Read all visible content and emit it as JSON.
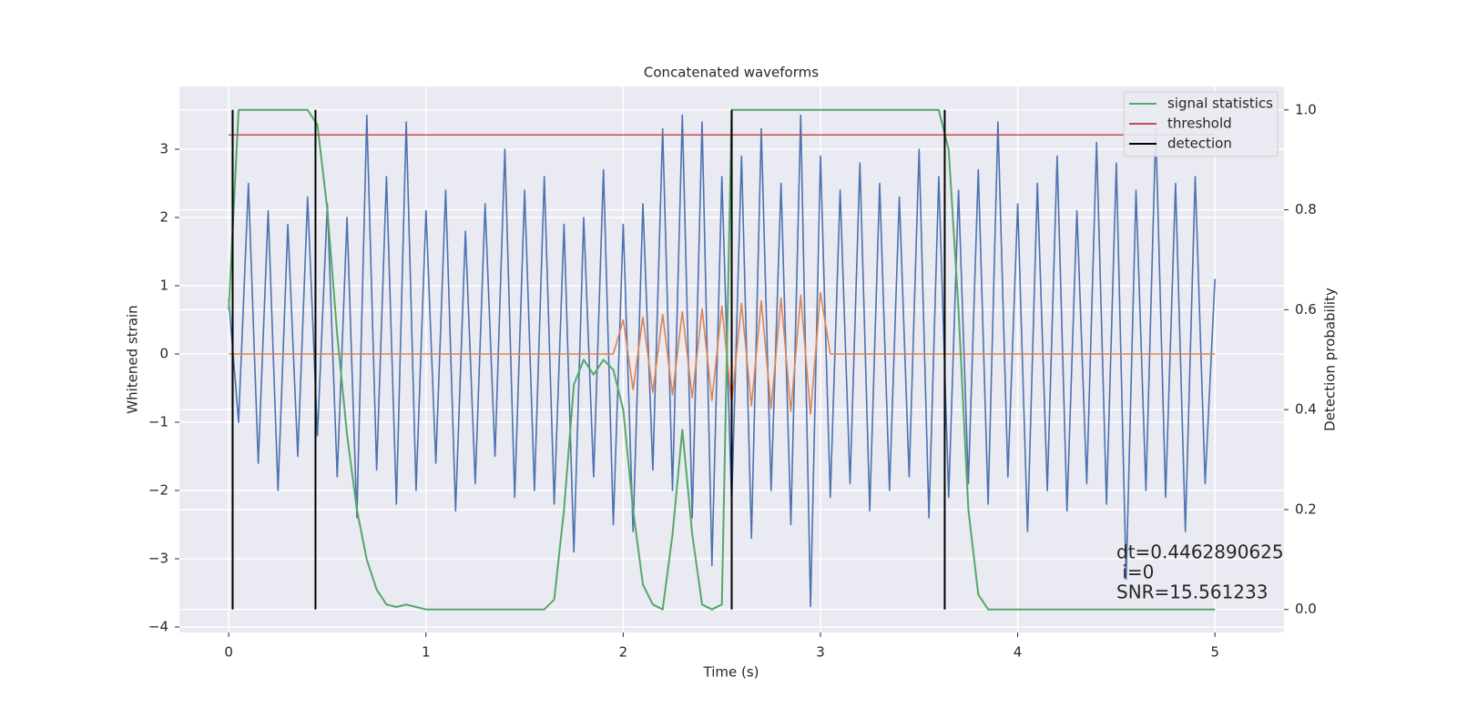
{
  "chart_data": {
    "type": "line",
    "title": "Concatenated waveforms",
    "xlabel": "Time (s)",
    "ylabel": "Whitened strain",
    "y2label": "Detection probability",
    "xlim": [
      -0.25,
      5.35
    ],
    "xticks": [
      0,
      1,
      2,
      3,
      4,
      5
    ],
    "ylim": [
      -4.08,
      3.92
    ],
    "yticks": [
      {
        "value": -4,
        "label": "−4"
      },
      {
        "value": -3,
        "label": "−3"
      },
      {
        "value": -2,
        "label": "−2"
      },
      {
        "value": -1,
        "label": "−1"
      },
      0,
      1,
      2,
      3
    ],
    "y2lim": [
      -0.046,
      1.047
    ],
    "y2ticks": [
      {
        "value": 0,
        "label": "0.0"
      },
      {
        "value": 0.2,
        "label": "0.2"
      },
      {
        "value": 0.4,
        "label": "0.4"
      },
      {
        "value": 0.6,
        "label": "0.6"
      },
      {
        "value": 0.8,
        "label": "0.8"
      },
      {
        "value": 1,
        "label": "1.0"
      }
    ],
    "grid": true,
    "legend": "upper right",
    "x": [
      0,
      0.05,
      0.1,
      0.15,
      0.2,
      0.25,
      0.3,
      0.35,
      0.4,
      0.45,
      0.5,
      0.55,
      0.6,
      0.65,
      0.7,
      0.75,
      0.8,
      0.85,
      0.9,
      0.95,
      1,
      1.05,
      1.1,
      1.15,
      1.2,
      1.25,
      1.3,
      1.35,
      1.4,
      1.45,
      1.5,
      1.55,
      1.6,
      1.65,
      1.7,
      1.75,
      1.8,
      1.85,
      1.9,
      1.95,
      2,
      2.05,
      2.1,
      2.15,
      2.2,
      2.25,
      2.3,
      2.35,
      2.4,
      2.45,
      2.5,
      2.55,
      2.6,
      2.65,
      2.7,
      2.75,
      2.8,
      2.85,
      2.9,
      2.95,
      3,
      3.05,
      3.1,
      3.15,
      3.2,
      3.25,
      3.3,
      3.35,
      3.4,
      3.45,
      3.5,
      3.55,
      3.6,
      3.65,
      3.7,
      3.75,
      3.8,
      3.85,
      3.9,
      3.95,
      4,
      4.05,
      4.1,
      4.15,
      4.2,
      4.25,
      4.3,
      4.35,
      4.4,
      4.45,
      4.5,
      4.55,
      4.6,
      4.65,
      4.7,
      4.75,
      4.8,
      4.85,
      4.9,
      4.95,
      5
    ],
    "series": [
      {
        "color": "#4c72b0",
        "values": [
          0.8,
          -1.0,
          2.5,
          -1.6,
          2.1,
          -2.0,
          1.9,
          -1.5,
          2.3,
          -1.2,
          2.2,
          -1.8,
          2.0,
          -2.4,
          3.5,
          -1.7,
          2.6,
          -2.2,
          3.4,
          -2.0,
          2.1,
          -1.6,
          2.4,
          -2.3,
          1.8,
          -1.9,
          2.2,
          -1.5,
          3.0,
          -2.1,
          2.4,
          -2.0,
          2.6,
          -2.2,
          1.9,
          -2.9,
          2.0,
          -1.8,
          2.7,
          -2.5,
          1.9,
          -2.6,
          2.2,
          -1.7,
          3.3,
          -2.0,
          3.5,
          -2.4,
          3.4,
          -3.1,
          2.6,
          -2.2,
          2.9,
          -2.7,
          3.3,
          -2.0,
          2.5,
          -2.5,
          3.5,
          -3.7,
          2.9,
          -2.1,
          2.4,
          -1.9,
          2.8,
          -2.3,
          2.5,
          -2.0,
          2.3,
          -1.8,
          3.0,
          -2.4,
          2.6,
          -2.1,
          2.4,
          -1.9,
          2.7,
          -2.2,
          3.4,
          -1.8,
          2.2,
          -2.6,
          2.5,
          -2.0,
          2.9,
          -2.3,
          2.1,
          -1.9,
          3.1,
          -2.2,
          2.8,
          -3.3,
          2.4,
          -2.0,
          3.3,
          -2.1,
          2.5,
          -2.6,
          2.6,
          -1.9,
          1.1
        ]
      },
      {
        "color": "#dd8452",
        "values": [
          0,
          0,
          0,
          0,
          0,
          0,
          0,
          0,
          0,
          0,
          0,
          0,
          0,
          0,
          0,
          0,
          0,
          0,
          0,
          0,
          0,
          0,
          0,
          0,
          0,
          0,
          0,
          0,
          0,
          0,
          0,
          0,
          0,
          0,
          0,
          0,
          0,
          0,
          0,
          0,
          0.5,
          -0.52,
          0.54,
          -0.56,
          0.58,
          -0.6,
          0.62,
          -0.64,
          0.66,
          -0.68,
          0.7,
          -0.72,
          0.74,
          -0.76,
          0.78,
          -0.8,
          0.82,
          -0.84,
          0.86,
          -0.88,
          0.9,
          0,
          0,
          0,
          0,
          0,
          0,
          0,
          0,
          0,
          0,
          0,
          0,
          0,
          0,
          0,
          0,
          0,
          0,
          0,
          0,
          0,
          0,
          0,
          0,
          0,
          0,
          0,
          0,
          0,
          0,
          0,
          0,
          0,
          0,
          0,
          0,
          0,
          0,
          0,
          0
        ]
      },
      {
        "name": "signal statistics",
        "color": "#55a868",
        "axis": "y2",
        "values": [
          0.6,
          1.0,
          1.0,
          1.0,
          1.0,
          1.0,
          1.0,
          1.0,
          1.0,
          0.97,
          0.8,
          0.55,
          0.35,
          0.2,
          0.1,
          0.04,
          0.01,
          0.005,
          0.01,
          0.005,
          0,
          0,
          0,
          0,
          0,
          0,
          0,
          0,
          0,
          0,
          0,
          0,
          0,
          0.02,
          0.2,
          0.45,
          0.5,
          0.47,
          0.5,
          0.48,
          0.4,
          0.2,
          0.05,
          0.01,
          0,
          0.15,
          0.36,
          0.15,
          0.01,
          0,
          0.01,
          1.0,
          1.0,
          1.0,
          1.0,
          1.0,
          1.0,
          1.0,
          1.0,
          1.0,
          1.0,
          1.0,
          1.0,
          1.0,
          1.0,
          1.0,
          1.0,
          1.0,
          1.0,
          1.0,
          1.0,
          1.0,
          1.0,
          0.92,
          0.6,
          0.2,
          0.03,
          0,
          0,
          0,
          0,
          0,
          0,
          0,
          0,
          0,
          0,
          0,
          0,
          0,
          0,
          0,
          0,
          0,
          0,
          0,
          0,
          0,
          0,
          0,
          0
        ]
      }
    ],
    "threshold": {
      "name": "threshold",
      "color": "#c44e52",
      "value": 0.95,
      "xrange": [
        0,
        5
      ]
    },
    "detection": {
      "name": "detection",
      "color": "#000000",
      "x": [
        0.02,
        0.44,
        2.55,
        3.63
      ],
      "yrange": [
        0,
        1
      ]
    },
    "annotations": [
      "dt=0.4462890625",
      " i=0",
      "SNR=15.561233"
    ]
  }
}
